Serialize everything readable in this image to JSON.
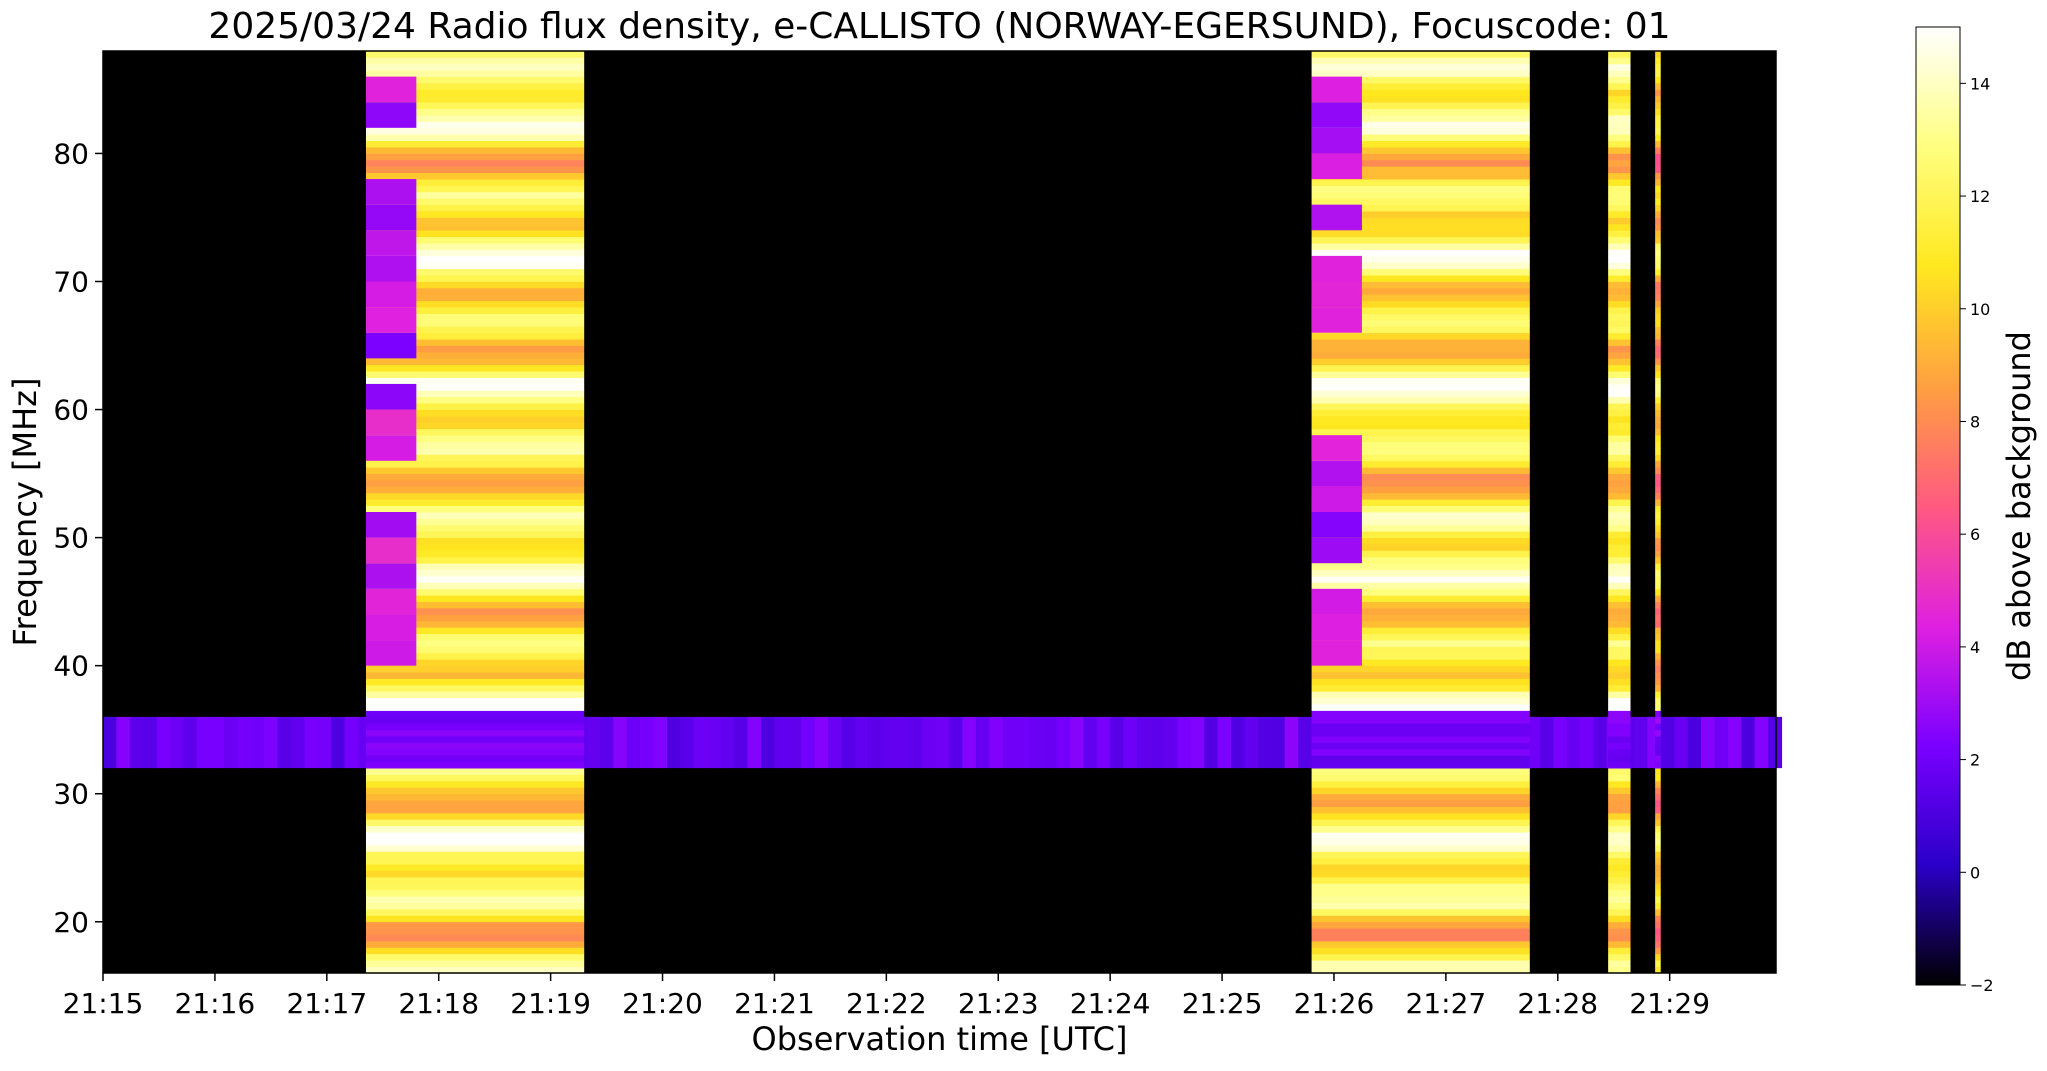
{
  "chart_data": {
    "type": "heatmap",
    "title": "2025/03/24  Radio flux density, e-CALLISTO (NORWAY-EGERSUND), Focuscode: 01",
    "xlabel": "Observation time [UTC]",
    "ylabel": "Frequency [MHz]",
    "x_ticks": [
      "21:15",
      "21:16",
      "21:17",
      "21:18",
      "21:19",
      "21:20",
      "21:21",
      "21:22",
      "21:23",
      "21:24",
      "21:25",
      "21:26",
      "21:27",
      "21:28",
      "21:29"
    ],
    "y_ticks": [
      20,
      30,
      40,
      50,
      60,
      70,
      80
    ],
    "xlim_minutes": [
      0,
      14.95
    ],
    "ylim": [
      16,
      88
    ],
    "colorbar": {
      "label": "dB above background",
      "range": [
        -2,
        15
      ],
      "ticks": [
        -2,
        0,
        2,
        4,
        6,
        8,
        10,
        12,
        14
      ],
      "colors": [
        "#000000",
        "#2a00c8",
        "#7a00ff",
        "#e020e0",
        "#ff5a80",
        "#ffa040",
        "#ffe820",
        "#ffff80",
        "#ffffff"
      ]
    },
    "bursts": [
      {
        "start_minute": 2.35,
        "end_minute": 4.3,
        "level_db": 14
      },
      {
        "start_minute": 10.8,
        "end_minute": 12.75,
        "level_db": 14
      },
      {
        "start_minute": 13.45,
        "end_minute": 13.65,
        "level_db": 14
      },
      {
        "start_minute": 13.87,
        "end_minute": 13.92,
        "level_db": 12
      }
    ],
    "background_band_mhz": [
      32,
      36
    ]
  }
}
